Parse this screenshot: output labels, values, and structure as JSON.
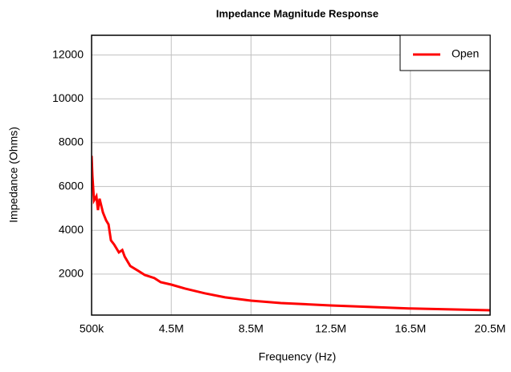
{
  "chart_data": {
    "type": "line",
    "title": "Impedance Magnitude Response",
    "xlabel": "Frequency (Hz)",
    "ylabel": "Impedance (Ohms)",
    "x": [
      500000,
      540000,
      620000,
      740000,
      820000,
      900000,
      1070000,
      1230000,
      1350000,
      1470000,
      1630000,
      1870000,
      2040000,
      2160000,
      2440000,
      2840000,
      3170000,
      3650000,
      3970000,
      4500000,
      5190000,
      6200000,
      7200000,
      8500000,
      10000000,
      12500000,
      14500000,
      16500000,
      18500000,
      20500000
    ],
    "series": [
      {
        "name": "Open",
        "color": "#ff0000",
        "values": [
          7400,
          6500,
          5360,
          5550,
          4920,
          5440,
          4810,
          4450,
          4270,
          3540,
          3350,
          2990,
          3100,
          2800,
          2370,
          2150,
          1960,
          1820,
          1630,
          1520,
          1340,
          1120,
          940,
          790,
          680,
          570,
          500,
          430,
          390,
          350
        ]
      }
    ],
    "xlim": [
      500000,
      20500000
    ],
    "xticks": [
      {
        "value": 500000,
        "label": "500k"
      },
      {
        "value": 4500000,
        "label": "4.5M"
      },
      {
        "value": 8500000,
        "label": "8.5M"
      },
      {
        "value": 12500000,
        "label": "12.5M"
      },
      {
        "value": 16500000,
        "label": "16.5M"
      },
      {
        "value": 20500000,
        "label": "20.5M"
      }
    ],
    "ylim": [
      130,
      12900
    ],
    "yticks": [
      2000,
      4000,
      6000,
      8000,
      10000,
      12000
    ],
    "grid": true,
    "legend": "upper right"
  }
}
